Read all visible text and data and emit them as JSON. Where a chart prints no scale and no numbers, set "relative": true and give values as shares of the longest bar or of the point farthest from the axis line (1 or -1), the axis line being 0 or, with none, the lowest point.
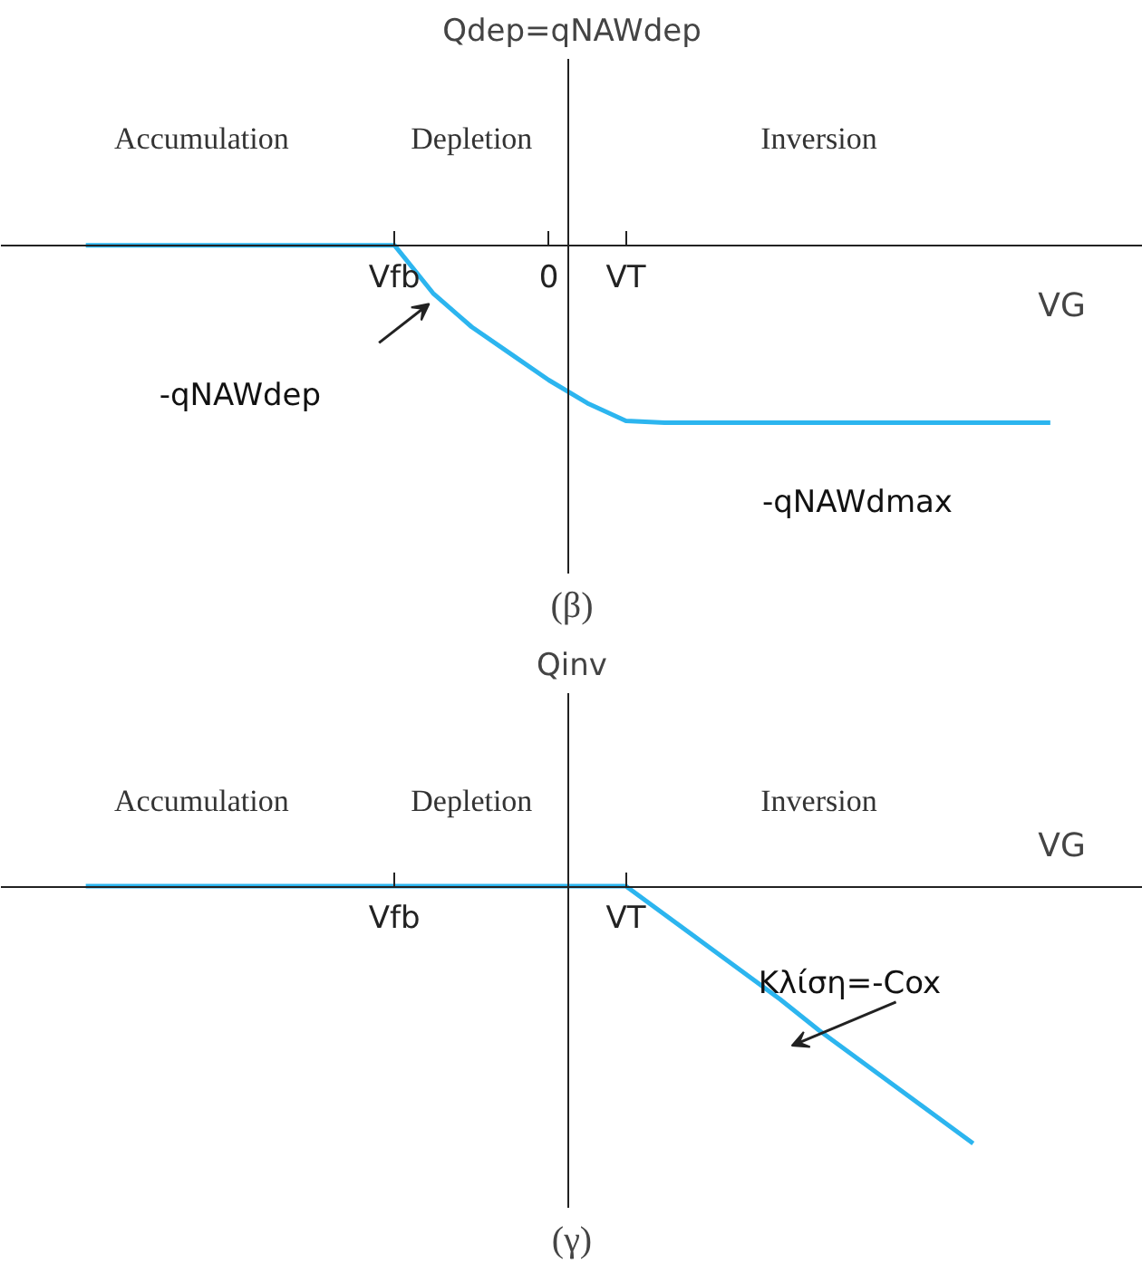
{
  "chart_data": [
    {
      "type": "line",
      "title": "(β)",
      "xlabel": "VG",
      "ylabel": "Qdep=qNAWdep",
      "relative": true,
      "line_style": "solid",
      "categories": [
        null,
        null,
        null,
        null,
        null,
        null,
        null,
        null,
        "Vfb",
        null,
        null,
        null,
        "0",
        null,
        "VT",
        null,
        null,
        null,
        null,
        null,
        null,
        null,
        null,
        null,
        null,
        null
      ],
      "series": [
        {
          "color": "#2cb5ef",
          "values": [
            0,
            0,
            0,
            0,
            0,
            0,
            0,
            0,
            0,
            -0.27,
            -0.46,
            -0.61,
            -0.76,
            -0.89,
            -0.99,
            -1,
            -1,
            -1,
            -1,
            -1,
            -1,
            -1,
            -1,
            -1,
            -1,
            -1
          ]
        }
      ],
      "annotations": [
        "Accumulation",
        "Depletion",
        "Inversion",
        "-qNAWdep",
        "-qNAWdmax"
      ]
    },
    {
      "type": "line",
      "title": "(γ)",
      "xlabel": "VG",
      "ylabel": "Qinv",
      "relative": true,
      "line_style": "solid",
      "categories": [
        null,
        null,
        null,
        null,
        null,
        null,
        null,
        null,
        "Vfb",
        null,
        null,
        null,
        null,
        null,
        "VT",
        null,
        null,
        null,
        null,
        null,
        null,
        null,
        null,
        null
      ],
      "series": [
        {
          "color": "#2cb5ef",
          "values": [
            0,
            0,
            0,
            0,
            0,
            0,
            0,
            0,
            0,
            0,
            0,
            0,
            0,
            0,
            0,
            -0.11,
            -0.22,
            -0.33,
            -0.44,
            -0.56,
            -0.67,
            -0.78,
            -0.89,
            -1
          ]
        }
      ],
      "annotations": [
        "Accumulation",
        "Depletion",
        "Inversion",
        "Κλίση=-Cox"
      ]
    }
  ]
}
